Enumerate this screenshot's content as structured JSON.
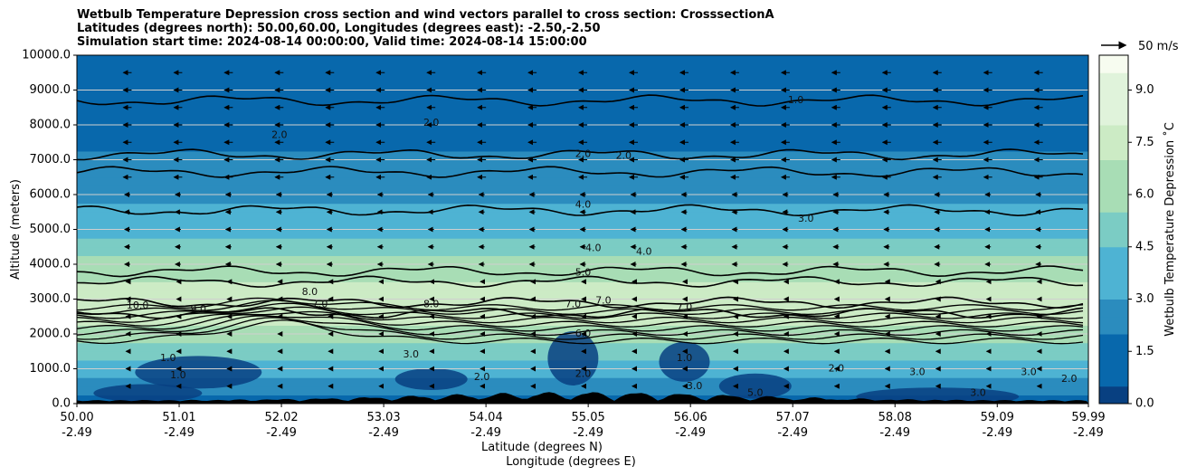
{
  "chart_data": {
    "type": "heatmap",
    "title_lines": [
      "Wetbulb Temperature Depression cross section and wind vectors parallel to cross section: CrosssectionA",
      "Latitudes (degrees north): 50.00,60.00, Longitudes (degrees east): -2.50,-2.50",
      "Simulation start time: 2024-08-14 00:00:00, Valid time: 2024-08-14 15:00:00"
    ],
    "ylabel": "Altitude (meters)",
    "xlabel_line1": "Latitude (degrees N)",
    "xlabel_line2": "Longitude (degrees E)",
    "ylim": [
      0,
      10000
    ],
    "y_ticks": [
      "0.0",
      "1000.0",
      "2000.0",
      "3000.0",
      "4000.0",
      "5000.0",
      "6000.0",
      "7000.0",
      "8000.0",
      "9000.0",
      "10000.0"
    ],
    "x_ticks": [
      {
        "lat": "50.00",
        "lon": "-2.49"
      },
      {
        "lat": "51.01",
        "lon": "-2.49"
      },
      {
        "lat": "52.02",
        "lon": "-2.49"
      },
      {
        "lat": "53.03",
        "lon": "-2.49"
      },
      {
        "lat": "54.04",
        "lon": "-2.49"
      },
      {
        "lat": "55.05",
        "lon": "-2.49"
      },
      {
        "lat": "56.06",
        "lon": "-2.49"
      },
      {
        "lat": "57.07",
        "lon": "-2.49"
      },
      {
        "lat": "58.08",
        "lon": "-2.49"
      },
      {
        "lat": "59.09",
        "lon": "-2.49"
      },
      {
        "lat": "59.99",
        "lon": "-2.49"
      }
    ],
    "colorbar": {
      "label": "Wetbulb Temperature Depression ˚C",
      "range": [
        0,
        10
      ],
      "ticks": [
        "0.0",
        "1.5",
        "3.0",
        "4.5",
        "6.0",
        "7.5",
        "9.0"
      ],
      "colors": [
        "#084081",
        "#0868ac",
        "#2b8cbe",
        "#4eb3d3",
        "#7bccc4",
        "#a8ddb5",
        "#ccebc5",
        "#e0f3db",
        "#f7fcf0"
      ]
    },
    "quiver_key": "50 m/s",
    "profile_levels": [
      {
        "altitude": 0,
        "value": 1.5
      },
      {
        "altitude": 1000,
        "value": 4.0
      },
      {
        "altitude": 2000,
        "value": 6.5
      },
      {
        "altitude": 3000,
        "value": 8.0
      },
      {
        "altitude": 4000,
        "value": 6.0
      },
      {
        "altitude": 5000,
        "value": 4.0
      },
      {
        "altitude": 6000,
        "value": 2.8
      },
      {
        "altitude": 7000,
        "value": 2.0
      },
      {
        "altitude": 8000,
        "value": 1.3
      },
      {
        "altitude": 9000,
        "value": 1.0
      },
      {
        "altitude": 10000,
        "value": 0.8
      }
    ],
    "contour_lines": [
      {
        "label": "1.0",
        "altitude": 8700
      },
      {
        "label": "2.0",
        "altitude": 7150
      },
      {
        "label": "3.0",
        "altitude": 6650
      },
      {
        "label": "4.0",
        "altitude": 5550
      },
      {
        "label": "5.0",
        "altitude": 3800
      },
      {
        "label": "6.0",
        "altitude": 3500
      },
      {
        "label": "7.0",
        "altitude": 2900
      },
      {
        "label": "8.0",
        "altitude": 2600
      }
    ],
    "contour_labels": [
      {
        "text": "2.0",
        "lat": 53.5,
        "altitude": 8050
      },
      {
        "text": "2.0",
        "lat": 52.0,
        "altitude": 7700
      },
      {
        "text": "1.0",
        "lat": 57.1,
        "altitude": 8700
      },
      {
        "text": "2.0",
        "lat": 55.0,
        "altitude": 7150
      },
      {
        "text": "2.0",
        "lat": 55.4,
        "altitude": 7100
      },
      {
        "text": "4.0",
        "lat": 55.0,
        "altitude": 5700
      },
      {
        "text": "4.0",
        "lat": 55.1,
        "altitude": 4450
      },
      {
        "text": "4.0",
        "lat": 55.6,
        "altitude": 4350
      },
      {
        "text": "3.0",
        "lat": 57.2,
        "altitude": 5300
      },
      {
        "text": "5.0",
        "lat": 55.0,
        "altitude": 3750
      },
      {
        "text": "7.0",
        "lat": 52.4,
        "altitude": 2850
      },
      {
        "text": "8.0",
        "lat": 52.3,
        "altitude": 3200
      },
      {
        "text": "8.0",
        "lat": 53.5,
        "altitude": 2850
      },
      {
        "text": "7.0",
        "lat": 54.9,
        "altitude": 2850
      },
      {
        "text": "7.0",
        "lat": 55.2,
        "altitude": 2950
      },
      {
        "text": "7.0",
        "lat": 56.0,
        "altitude": 2750
      },
      {
        "text": "9.0",
        "lat": 51.2,
        "altitude": 2700
      },
      {
        "text": "10.0",
        "lat": 50.6,
        "altitude": 2800
      },
      {
        "text": "6.0",
        "lat": 55.0,
        "altitude": 2000
      },
      {
        "text": "1.0",
        "lat": 50.9,
        "altitude": 1300
      },
      {
        "text": "1.0",
        "lat": 51.0,
        "altitude": 800
      },
      {
        "text": "3.0",
        "lat": 53.3,
        "altitude": 1400
      },
      {
        "text": "2.0",
        "lat": 55.0,
        "altitude": 850
      },
      {
        "text": "1.0",
        "lat": 56.0,
        "altitude": 1300
      },
      {
        "text": "3.0",
        "lat": 56.1,
        "altitude": 500
      },
      {
        "text": "2.0",
        "lat": 57.5,
        "altitude": 1000
      },
      {
        "text": "3.0",
        "lat": 58.3,
        "altitude": 900
      },
      {
        "text": "3.0",
        "lat": 58.9,
        "altitude": 300
      },
      {
        "text": "3.0",
        "lat": 59.4,
        "altitude": 900
      },
      {
        "text": "2.0",
        "lat": 59.8,
        "altitude": 700
      },
      {
        "text": "5.0",
        "lat": 56.7,
        "altitude": 300
      },
      {
        "text": "2.0",
        "lat": 54.0,
        "altitude": 750
      }
    ]
  }
}
